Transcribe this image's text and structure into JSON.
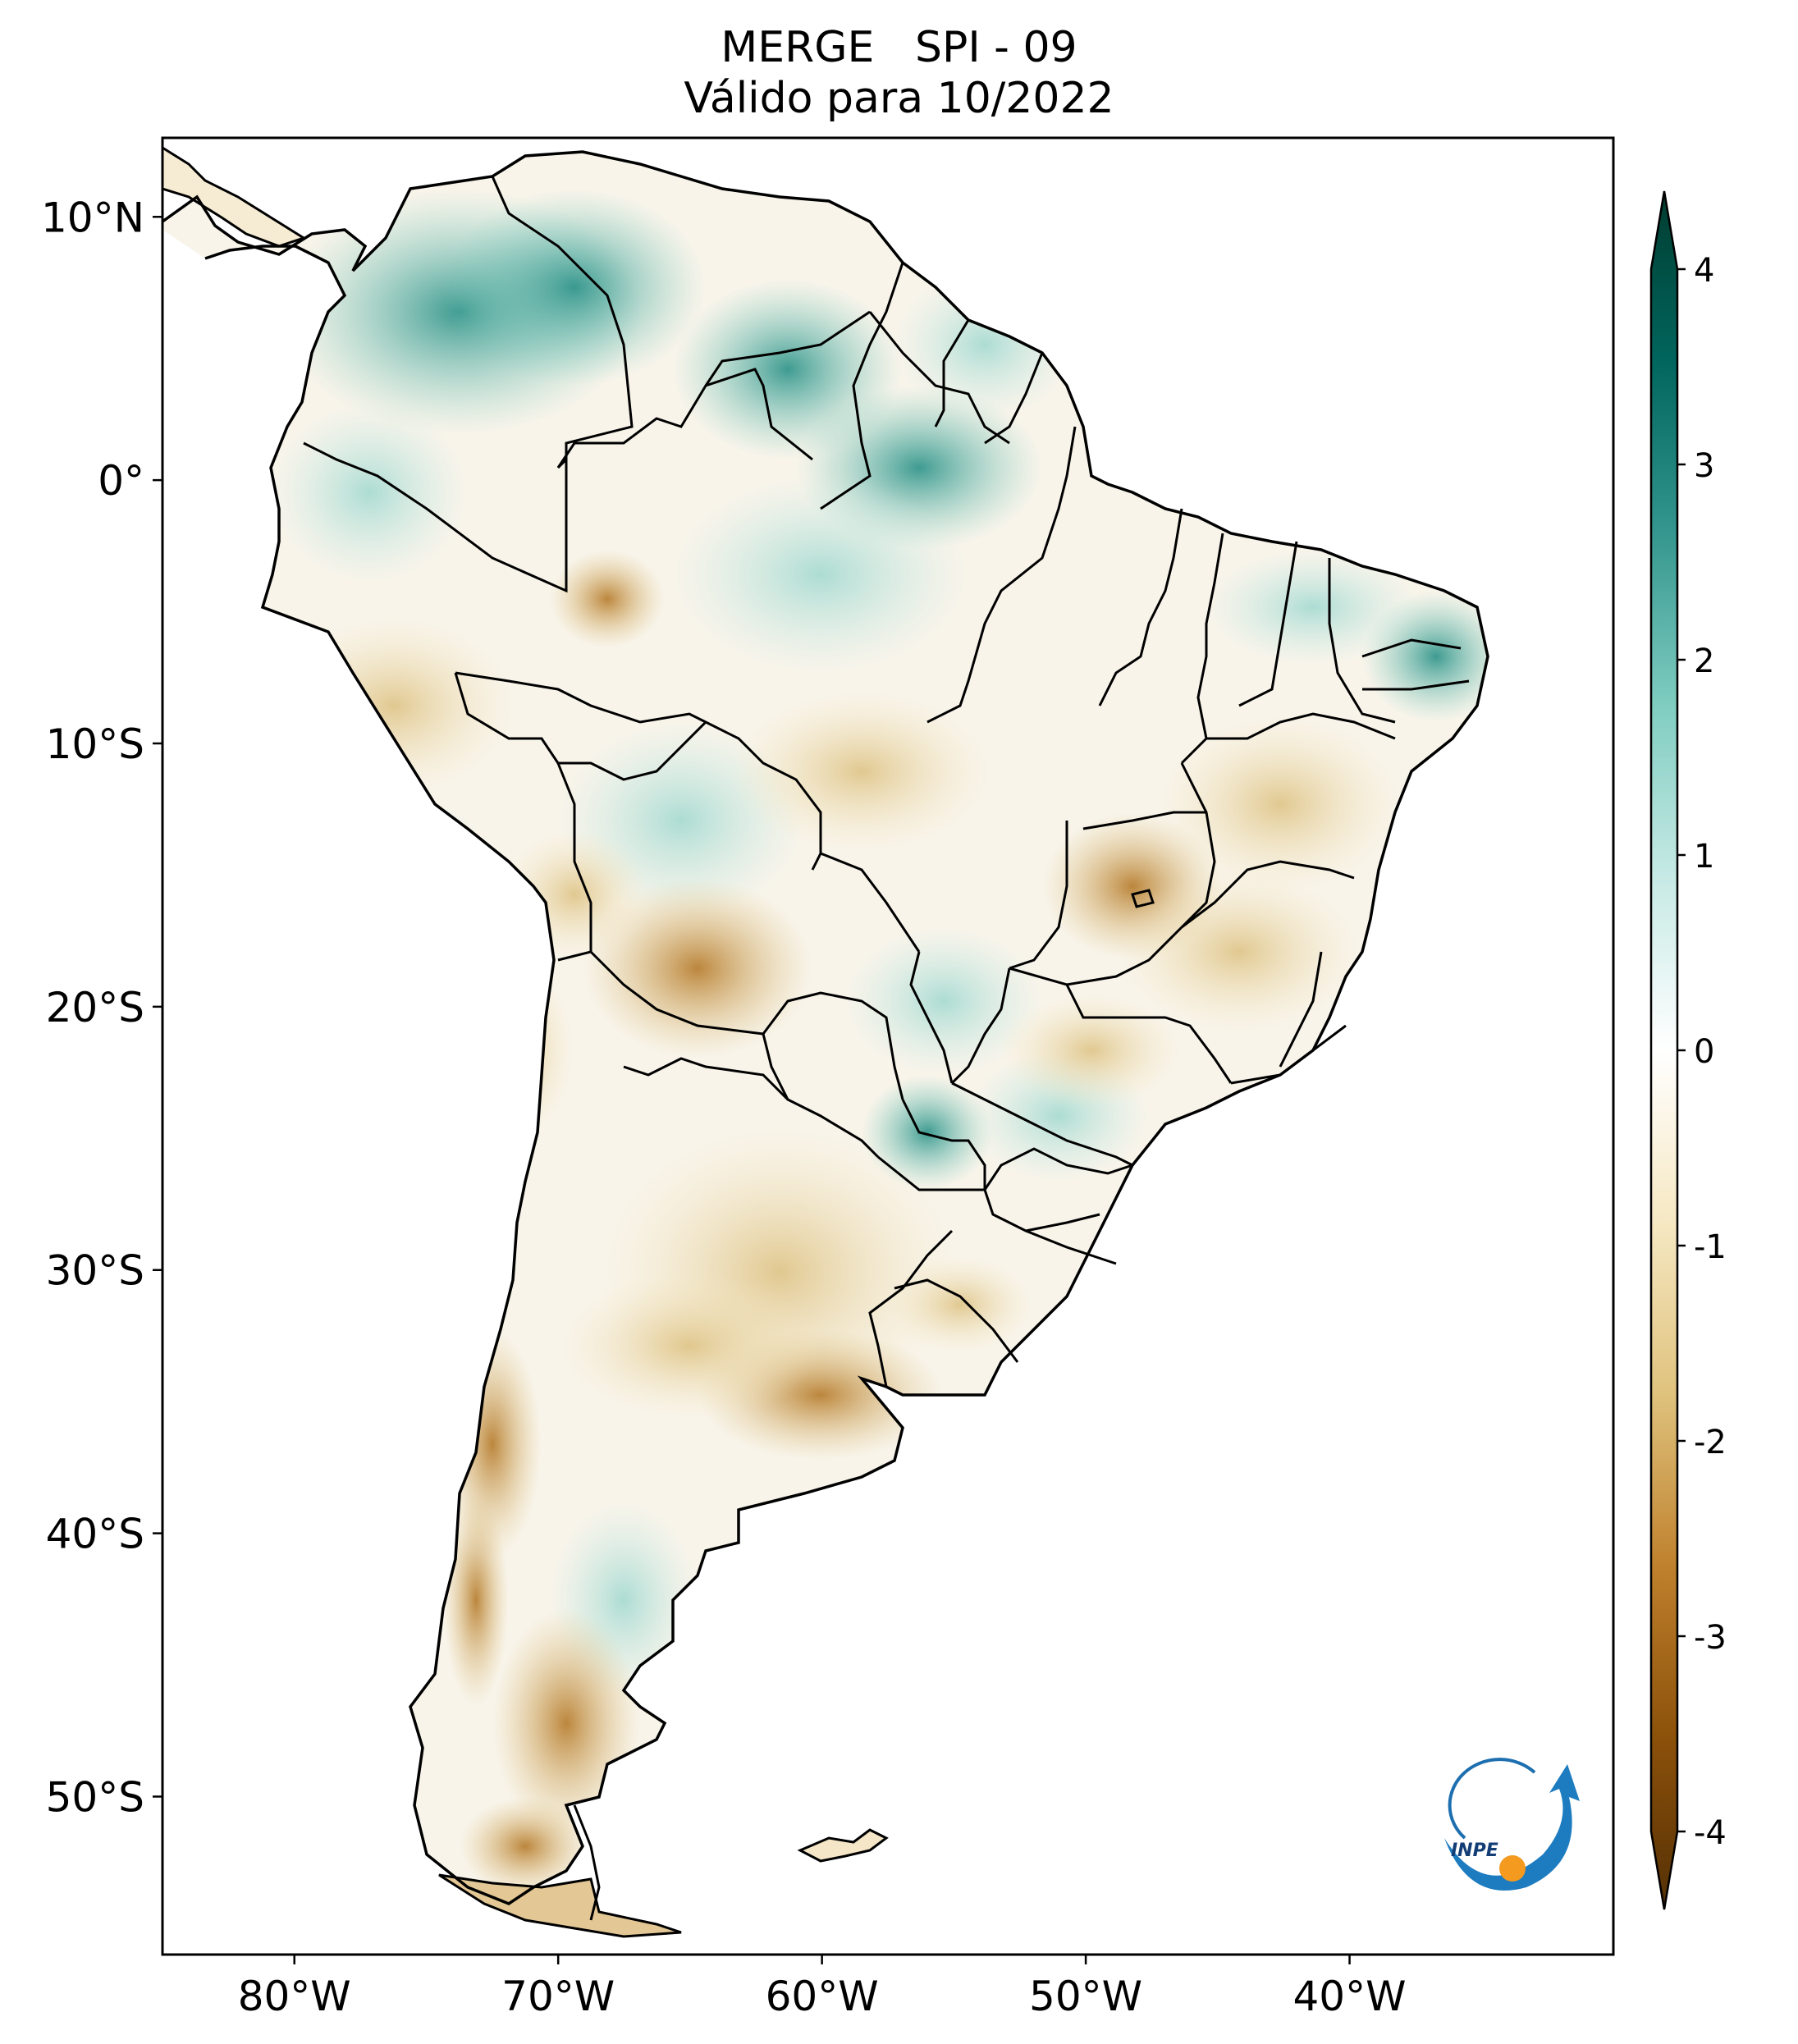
{
  "title_line1": "MERGE   SPI - 09",
  "title_line2": "Válido para 10/2022",
  "map": {
    "lon_range": [
      -85,
      -30
    ],
    "lat_range": [
      -56,
      13
    ],
    "lat_labels": [
      {
        "lat": 10,
        "text": "10°N"
      },
      {
        "lat": 0,
        "text": "0°"
      },
      {
        "lat": -10,
        "text": "10°S"
      },
      {
        "lat": -20,
        "text": "20°S"
      },
      {
        "lat": -30,
        "text": "30°S"
      },
      {
        "lat": -40,
        "text": "40°S"
      },
      {
        "lat": -50,
        "text": "50°S"
      }
    ],
    "lon_labels": [
      {
        "lon": -80,
        "text": "80°W"
      },
      {
        "lon": -70,
        "text": "70°W"
      },
      {
        "lon": -60,
        "text": "60°W"
      },
      {
        "lon": -50,
        "text": "50°W"
      },
      {
        "lon": -40,
        "text": "40°W"
      }
    ]
  },
  "colorbar": {
    "range": [
      -4,
      4
    ],
    "extend": "both",
    "ticks": [
      {
        "value": 4,
        "text": "4"
      },
      {
        "value": 3,
        "text": "3"
      },
      {
        "value": 2,
        "text": "2"
      },
      {
        "value": 1,
        "text": "1"
      },
      {
        "value": 0,
        "text": "0"
      },
      {
        "value": -1,
        "text": "-1"
      },
      {
        "value": -2,
        "text": "-2"
      },
      {
        "value": -3,
        "text": "-3"
      },
      {
        "value": -4,
        "text": "-4"
      }
    ],
    "colors": [
      "#543005",
      "#8c510a",
      "#bf812d",
      "#dfc27d",
      "#f6e8c3",
      "#ffffff",
      "#c7eae5",
      "#80cdc1",
      "#35978f",
      "#01665e",
      "#003c30"
    ]
  },
  "logo": {
    "text": "INPE"
  }
}
